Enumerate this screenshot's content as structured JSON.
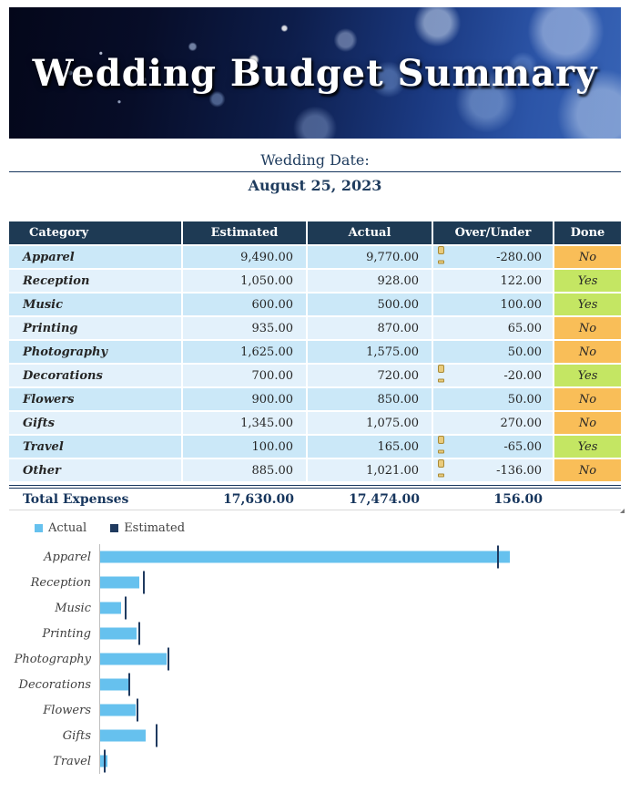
{
  "banner": {
    "title": "Wedding Budget Summary"
  },
  "date_section": {
    "label": "Wedding Date:",
    "value": "August 25, 2023"
  },
  "table": {
    "headers": [
      "Category",
      "Estimated",
      "Actual",
      "Over/Under",
      "Done"
    ],
    "rows": [
      {
        "category": "Apparel",
        "estimated": "9,490.00",
        "actual": "9,770.00",
        "over_under": "-280.00",
        "warning": true,
        "done": "No"
      },
      {
        "category": "Reception",
        "estimated": "1,050.00",
        "actual": "928.00",
        "over_under": "122.00",
        "warning": false,
        "done": "Yes"
      },
      {
        "category": "Music",
        "estimated": "600.00",
        "actual": "500.00",
        "over_under": "100.00",
        "warning": false,
        "done": "Yes"
      },
      {
        "category": "Printing",
        "estimated": "935.00",
        "actual": "870.00",
        "over_under": "65.00",
        "warning": false,
        "done": "No"
      },
      {
        "category": "Photography",
        "estimated": "1,625.00",
        "actual": "1,575.00",
        "over_under": "50.00",
        "warning": false,
        "done": "No"
      },
      {
        "category": "Decorations",
        "estimated": "700.00",
        "actual": "720.00",
        "over_under": "-20.00",
        "warning": true,
        "done": "Yes"
      },
      {
        "category": "Flowers",
        "estimated": "900.00",
        "actual": "850.00",
        "over_under": "50.00",
        "warning": false,
        "done": "No"
      },
      {
        "category": "Gifts",
        "estimated": "1,345.00",
        "actual": "1,075.00",
        "over_under": "270.00",
        "warning": false,
        "done": "No"
      },
      {
        "category": "Travel",
        "estimated": "100.00",
        "actual": "165.00",
        "over_under": "-65.00",
        "warning": true,
        "done": "Yes"
      },
      {
        "category": "Other",
        "estimated": "885.00",
        "actual": "1,021.00",
        "over_under": "-136.00",
        "warning": true,
        "done": "No"
      }
    ],
    "total": {
      "label": "Total Expenses",
      "estimated": "17,630.00",
      "actual": "17,474.00",
      "over_under": "156.00"
    }
  },
  "chart_data": {
    "type": "bar",
    "orientation": "horizontal",
    "categories": [
      "Apparel",
      "Reception",
      "Music",
      "Printing",
      "Photography",
      "Decorations",
      "Flowers",
      "Gifts",
      "Travel"
    ],
    "series": [
      {
        "name": "Actual",
        "color": "#66c1ee",
        "style": "bar",
        "values": [
          9770,
          928,
          500,
          870,
          1575,
          720,
          850,
          1075,
          165
        ]
      },
      {
        "name": "Estimated",
        "color": "#1f3a5f",
        "style": "tick",
        "values": [
          9490,
          1050,
          600,
          935,
          1625,
          700,
          900,
          1345,
          100
        ]
      }
    ],
    "xlim": [
      0,
      12000
    ],
    "grid": false,
    "legend_position": "top-left",
    "title": "",
    "xlabel": "",
    "ylabel": ""
  },
  "colors": {
    "header_navy": "#1e3a54",
    "row_blue": "#cbe8f8",
    "row_blue_alt": "#e3f1fb",
    "done_no_orange": "#f9be58",
    "done_yes_green": "#c4e663",
    "accent_navy_text": "#17365d",
    "bar_blue": "#66c1ee",
    "tick_navy": "#1f3a5f",
    "warning_gold": "#e9cb7c"
  }
}
